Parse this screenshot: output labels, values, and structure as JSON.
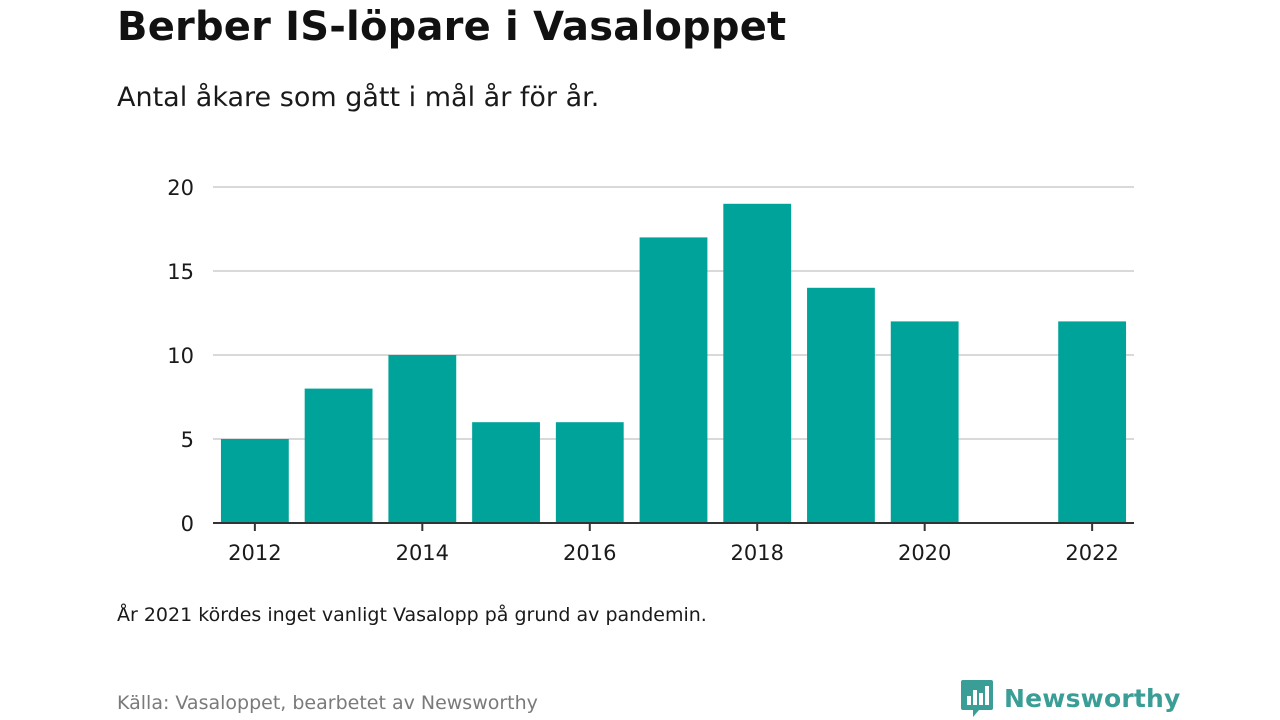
{
  "header": {
    "title": "Berber IS-löpare i Vasaloppet",
    "subtitle": "Antal åkare som gått i mål år för år."
  },
  "footer": {
    "note": "År 2021 kördes inget vanligt Vasalopp på grund av pandemin.",
    "source": "Källa: Vasaloppet, bearbetet av Newsworthy",
    "brand": "Newsworthy",
    "brand_icon": "bar-chart-speech-icon"
  },
  "colors": {
    "bar": "#00a39a",
    "grid": "#d9d9d9",
    "axis": "#333333",
    "brand": "#3a9e96"
  },
  "chart_data": {
    "type": "bar",
    "title": "Berber IS-löpare i Vasaloppet",
    "subtitle": "Antal åkare som gått i mål år för år.",
    "xlabel": "",
    "ylabel": "",
    "x": [
      2012,
      2013,
      2014,
      2015,
      2016,
      2017,
      2018,
      2019,
      2020,
      2022
    ],
    "values": [
      5,
      8,
      10,
      6,
      6,
      17,
      19,
      14,
      12,
      12
    ],
    "xlim": [
      2011.5,
      2022.5
    ],
    "ylim": [
      0,
      20
    ],
    "yticks": [
      0,
      5,
      10,
      15,
      20
    ],
    "xticks": [
      2012,
      2014,
      2016,
      2018,
      2020,
      2022
    ],
    "grid": true,
    "legend": "none"
  }
}
